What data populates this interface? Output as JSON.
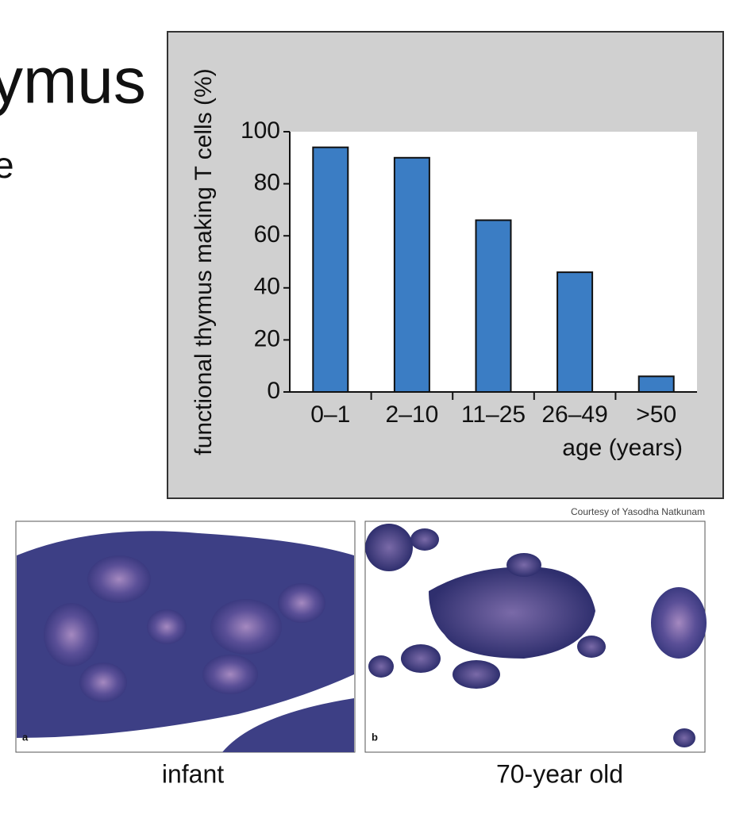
{
  "slide": {
    "title_fragment": "ymus",
    "line_fragment": "e",
    "credit": "Courtesy of Yasodha Natkunam",
    "panels": [
      {
        "letter": "a",
        "caption": "infant"
      },
      {
        "letter": "b",
        "caption": "70-year old"
      }
    ]
  },
  "chart_data": {
    "type": "bar",
    "x_label": "age (years)",
    "y_label": "functional thymus making T cells (%)",
    "categories": [
      "0–1",
      "2–10",
      "11–25",
      "26–49",
      ">50"
    ],
    "values": [
      94,
      90,
      66,
      46,
      6
    ],
    "color": "#3b7dc4",
    "ylim": [
      0,
      100
    ],
    "yticks": [
      0,
      20,
      40,
      60,
      80,
      100
    ],
    "grid": false
  }
}
